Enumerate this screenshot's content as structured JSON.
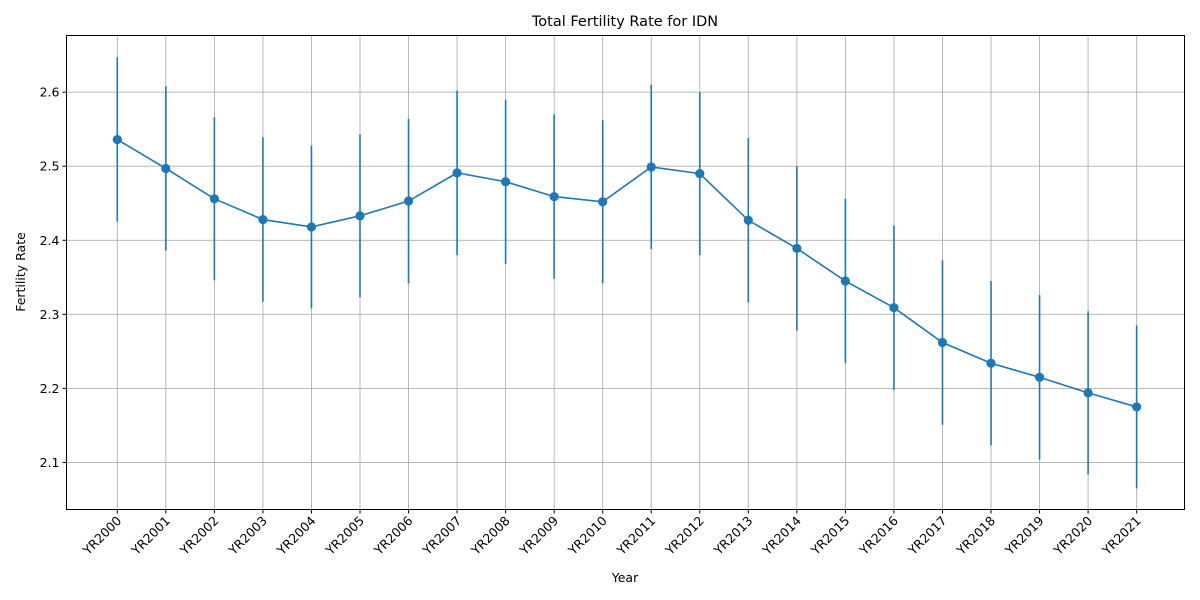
{
  "chart_data": {
    "type": "line",
    "title": "Total Fertility Rate for IDN",
    "xlabel": "Year",
    "ylabel": "Fertility Rate",
    "categories": [
      "YR2000",
      "YR2001",
      "YR2002",
      "YR2003",
      "YR2004",
      "YR2005",
      "YR2006",
      "YR2007",
      "YR2008",
      "YR2009",
      "YR2010",
      "YR2011",
      "YR2012",
      "YR2013",
      "YR2014",
      "YR2015",
      "YR2016",
      "YR2017",
      "YR2018",
      "YR2019",
      "YR2020",
      "YR2021"
    ],
    "values": [
      2.536,
      2.497,
      2.456,
      2.428,
      2.418,
      2.433,
      2.453,
      2.491,
      2.479,
      2.459,
      2.452,
      2.499,
      2.49,
      2.427,
      2.389,
      2.345,
      2.309,
      2.262,
      2.234,
      2.215,
      2.194,
      2.175
    ],
    "error": [
      0.111,
      0.111,
      0.11,
      0.111,
      0.11,
      0.11,
      0.111,
      0.111,
      0.111,
      0.111,
      0.11,
      0.111,
      0.11,
      0.111,
      0.111,
      0.111,
      0.111,
      0.111,
      0.111,
      0.111,
      0.11,
      0.11
    ],
    "yticks": [
      "2.1",
      "2.2",
      "2.3",
      "2.4",
      "2.5",
      "2.6"
    ],
    "ylim": [
      2.0365,
      2.6765
    ],
    "grid": true,
    "colors": {
      "series": "#1f77b4",
      "grid": "#b0b0b0"
    }
  }
}
